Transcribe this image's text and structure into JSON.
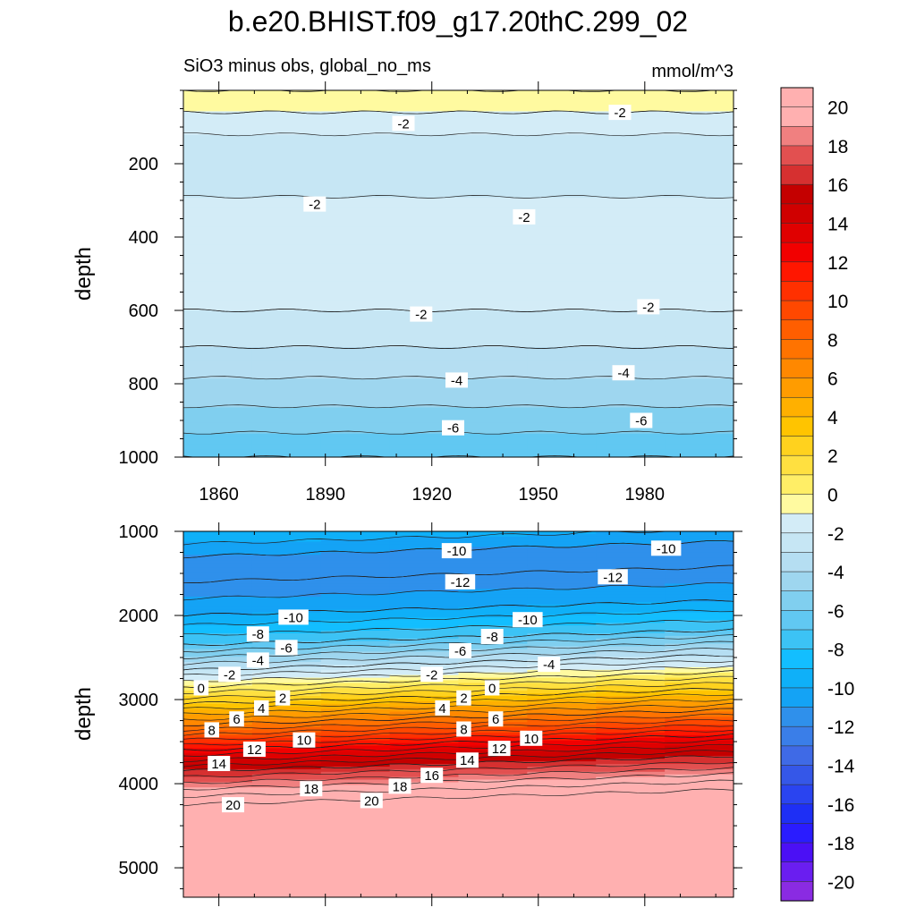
{
  "title": "b.e20.BHIST.f09_g17.20thC.299_02",
  "chart_data": [
    {
      "type": "heatmap",
      "subtitle_left": "SiO3 minus obs, global_no_ms",
      "subtitle_right": "mmol/m^3",
      "ylabel": "depth",
      "xlim": [
        1850,
        2005
      ],
      "ylim": [
        0,
        1000
      ],
      "y_inverted": true,
      "x_ticks": [
        "1860",
        "1890",
        "1920",
        "1950",
        "1980"
      ],
      "y_ticks": [
        "200",
        "400",
        "600",
        "800",
        "1000"
      ],
      "level_profile": [
        {
          "depth": 0,
          "value": 0.0
        },
        {
          "depth": 60,
          "value": -1.0
        },
        {
          "depth": 150,
          "value": -2.5
        },
        {
          "depth": 250,
          "value": -2.2
        },
        {
          "depth": 330,
          "value": -1.8
        },
        {
          "depth": 450,
          "value": -1.5
        },
        {
          "depth": 600,
          "value": -2.0
        },
        {
          "depth": 700,
          "value": -3.0
        },
        {
          "depth": 800,
          "value": -4.2
        },
        {
          "depth": 900,
          "value": -5.5
        },
        {
          "depth": 1000,
          "value": -7.0
        }
      ],
      "contour_labels": [
        {
          "text": "-2",
          "x": 1912,
          "depth": 90
        },
        {
          "text": "-2",
          "x": 1973,
          "depth": 60
        },
        {
          "text": "-2",
          "x": 1887,
          "depth": 310
        },
        {
          "text": "-2",
          "x": 1946,
          "depth": 345
        },
        {
          "text": "-2",
          "x": 1917,
          "depth": 610
        },
        {
          "text": "-2",
          "x": 1981,
          "depth": 590
        },
        {
          "text": "-4",
          "x": 1927,
          "depth": 790
        },
        {
          "text": "-4",
          "x": 1974,
          "depth": 770
        },
        {
          "text": "-6",
          "x": 1926,
          "depth": 920
        },
        {
          "text": "-6",
          "x": 1979,
          "depth": 900
        }
      ]
    },
    {
      "type": "heatmap",
      "ylabel": "depth",
      "xlim": [
        1850,
        2005
      ],
      "ylim": [
        1000,
        5350
      ],
      "y_inverted": true,
      "y_ticks": [
        "1000",
        "2000",
        "3000",
        "4000",
        "5000"
      ],
      "level_profile": [
        {
          "depth": 1000,
          "value": -9.0
        },
        {
          "depth": 1300,
          "value": -11.0
        },
        {
          "depth": 1600,
          "value": -12.0
        },
        {
          "depth": 2000,
          "value": -10.0
        },
        {
          "depth": 2350,
          "value": -7.0
        },
        {
          "depth": 2650,
          "value": -3.0
        },
        {
          "depth": 2850,
          "value": 0.0
        },
        {
          "depth": 3050,
          "value": 3.0
        },
        {
          "depth": 3300,
          "value": 7.0
        },
        {
          "depth": 3600,
          "value": 12.0
        },
        {
          "depth": 3850,
          "value": 16.0
        },
        {
          "depth": 4100,
          "value": 19.5
        },
        {
          "depth": 4250,
          "value": 21.0
        },
        {
          "depth": 5350,
          "value": 21.0
        }
      ],
      "contour_labels": [
        {
          "text": "-10",
          "x": 1927,
          "depth": 1230
        },
        {
          "text": "-10",
          "x": 1986,
          "depth": 1200
        },
        {
          "text": "-12",
          "x": 1928,
          "depth": 1600
        },
        {
          "text": "-12",
          "x": 1971,
          "depth": 1540
        },
        {
          "text": "-10",
          "x": 1881,
          "depth": 2020
        },
        {
          "text": "-10",
          "x": 1947,
          "depth": 2050
        },
        {
          "text": "-8",
          "x": 1871,
          "depth": 2220
        },
        {
          "text": "-8",
          "x": 1937,
          "depth": 2250
        },
        {
          "text": "-6",
          "x": 1879,
          "depth": 2380
        },
        {
          "text": "-6",
          "x": 1928,
          "depth": 2420
        },
        {
          "text": "-4",
          "x": 1871,
          "depth": 2530
        },
        {
          "text": "-4",
          "x": 1953,
          "depth": 2580
        },
        {
          "text": "-2",
          "x": 1863,
          "depth": 2700
        },
        {
          "text": "-2",
          "x": 1920,
          "depth": 2700
        },
        {
          "text": "0",
          "x": 1855,
          "depth": 2860
        },
        {
          "text": "0",
          "x": 1937,
          "depth": 2860
        },
        {
          "text": "2",
          "x": 1878,
          "depth": 2980
        },
        {
          "text": "2",
          "x": 1929,
          "depth": 2980
        },
        {
          "text": "4",
          "x": 1872,
          "depth": 3100
        },
        {
          "text": "4",
          "x": 1923,
          "depth": 3100
        },
        {
          "text": "6",
          "x": 1865,
          "depth": 3230
        },
        {
          "text": "6",
          "x": 1938,
          "depth": 3230
        },
        {
          "text": "8",
          "x": 1858,
          "depth": 3360
        },
        {
          "text": "8",
          "x": 1929,
          "depth": 3350
        },
        {
          "text": "10",
          "x": 1884,
          "depth": 3480
        },
        {
          "text": "10",
          "x": 1948,
          "depth": 3460
        },
        {
          "text": "12",
          "x": 1870,
          "depth": 3590
        },
        {
          "text": "12",
          "x": 1939,
          "depth": 3580
        },
        {
          "text": "14",
          "x": 1860,
          "depth": 3760
        },
        {
          "text": "14",
          "x": 1930,
          "depth": 3720
        },
        {
          "text": "16",
          "x": 1920,
          "depth": 3900
        },
        {
          "text": "18",
          "x": 1886,
          "depth": 4060
        },
        {
          "text": "18",
          "x": 1911,
          "depth": 4030
        },
        {
          "text": "20",
          "x": 1864,
          "depth": 4250
        },
        {
          "text": "20",
          "x": 1903,
          "depth": 4200
        }
      ]
    },
    {
      "type": "colorbar",
      "levels_min": -21,
      "levels_max": 21,
      "step": 1,
      "tick_labels": [
        "20",
        "18",
        "16",
        "14",
        "12",
        "10",
        "8",
        "6",
        "4",
        "2",
        "0",
        "-2",
        "-4",
        "-6",
        "-8",
        "-10",
        "-12",
        "-14",
        "-16",
        "-18",
        "-20"
      ],
      "colors_low_to_high": [
        "#8a2be2",
        "#6a1ef0",
        "#4b10f5",
        "#2a1cff",
        "#1e2ff5",
        "#2a44f0",
        "#3557e8",
        "#3f6ae6",
        "#3a7ee8",
        "#2f90eb",
        "#14a3f5",
        "#0fb0f8",
        "#13beff",
        "#3cc3f5",
        "#61c8f2",
        "#80cfef",
        "#9ed6ef",
        "#b5def2",
        "#c6e6f4",
        "#d3ecf7",
        "#fffaa0",
        "#ffee66",
        "#ffe040",
        "#ffd21e",
        "#ffc400",
        "#ffb000",
        "#ff9c00",
        "#ff8800",
        "#ff7300",
        "#ff5e00",
        "#ff4800",
        "#ff3000",
        "#ff1600",
        "#f20000",
        "#e00000",
        "#d00000",
        "#c40000",
        "#d63030",
        "#e25050",
        "#f08080",
        "#ffb0b0",
        "#ffb0b0"
      ]
    }
  ]
}
